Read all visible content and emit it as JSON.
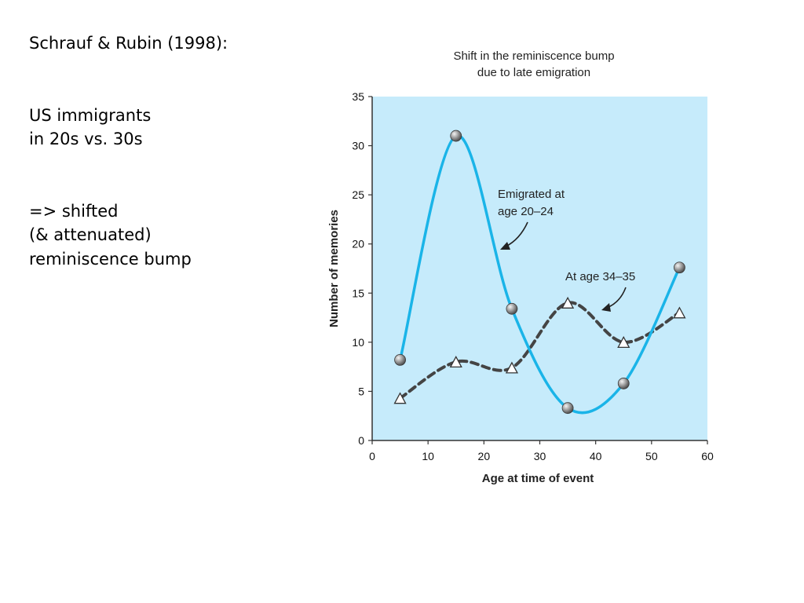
{
  "slide": {
    "heading": "Schrauf & Rubin (1998):",
    "lines_block1": [
      "US immigrants",
      "in 20s vs. 30s"
    ],
    "lines_block2": [
      "=> shifted",
      "(& attenuated)",
      "reminiscence bump"
    ]
  },
  "chart_data": {
    "type": "line",
    "title_lines": [
      "Shift in the reminiscence bump",
      "due to late emigration"
    ],
    "xlabel": "Age at time of event",
    "ylabel": "Number of memories",
    "xlim": [
      0,
      60
    ],
    "ylim": [
      0,
      35
    ],
    "xticks": [
      0,
      10,
      20,
      30,
      40,
      50,
      60
    ],
    "yticks": [
      0,
      5,
      10,
      15,
      20,
      25,
      30,
      35
    ],
    "grid": false,
    "background_color": "#c6ebfb",
    "series": [
      {
        "name": "Emigrated at age 20–24",
        "label_lines": [
          "Emigrated at",
          "age 20–24"
        ],
        "color": "#1ab4e8",
        "style": "solid",
        "marker": "sphere",
        "x": [
          5,
          15,
          25,
          35,
          45,
          55
        ],
        "y": [
          8.2,
          31,
          13.4,
          3.3,
          5.8,
          17.6
        ]
      },
      {
        "name": "At age 34–35",
        "label_lines": [
          "At age 34–35"
        ],
        "color": "#444444",
        "style": "dashed",
        "marker": "triangle",
        "x": [
          5,
          15,
          25,
          35,
          45,
          55
        ],
        "y": [
          4.3,
          8.0,
          7.4,
          14.0,
          10.0,
          13.0
        ]
      }
    ]
  }
}
